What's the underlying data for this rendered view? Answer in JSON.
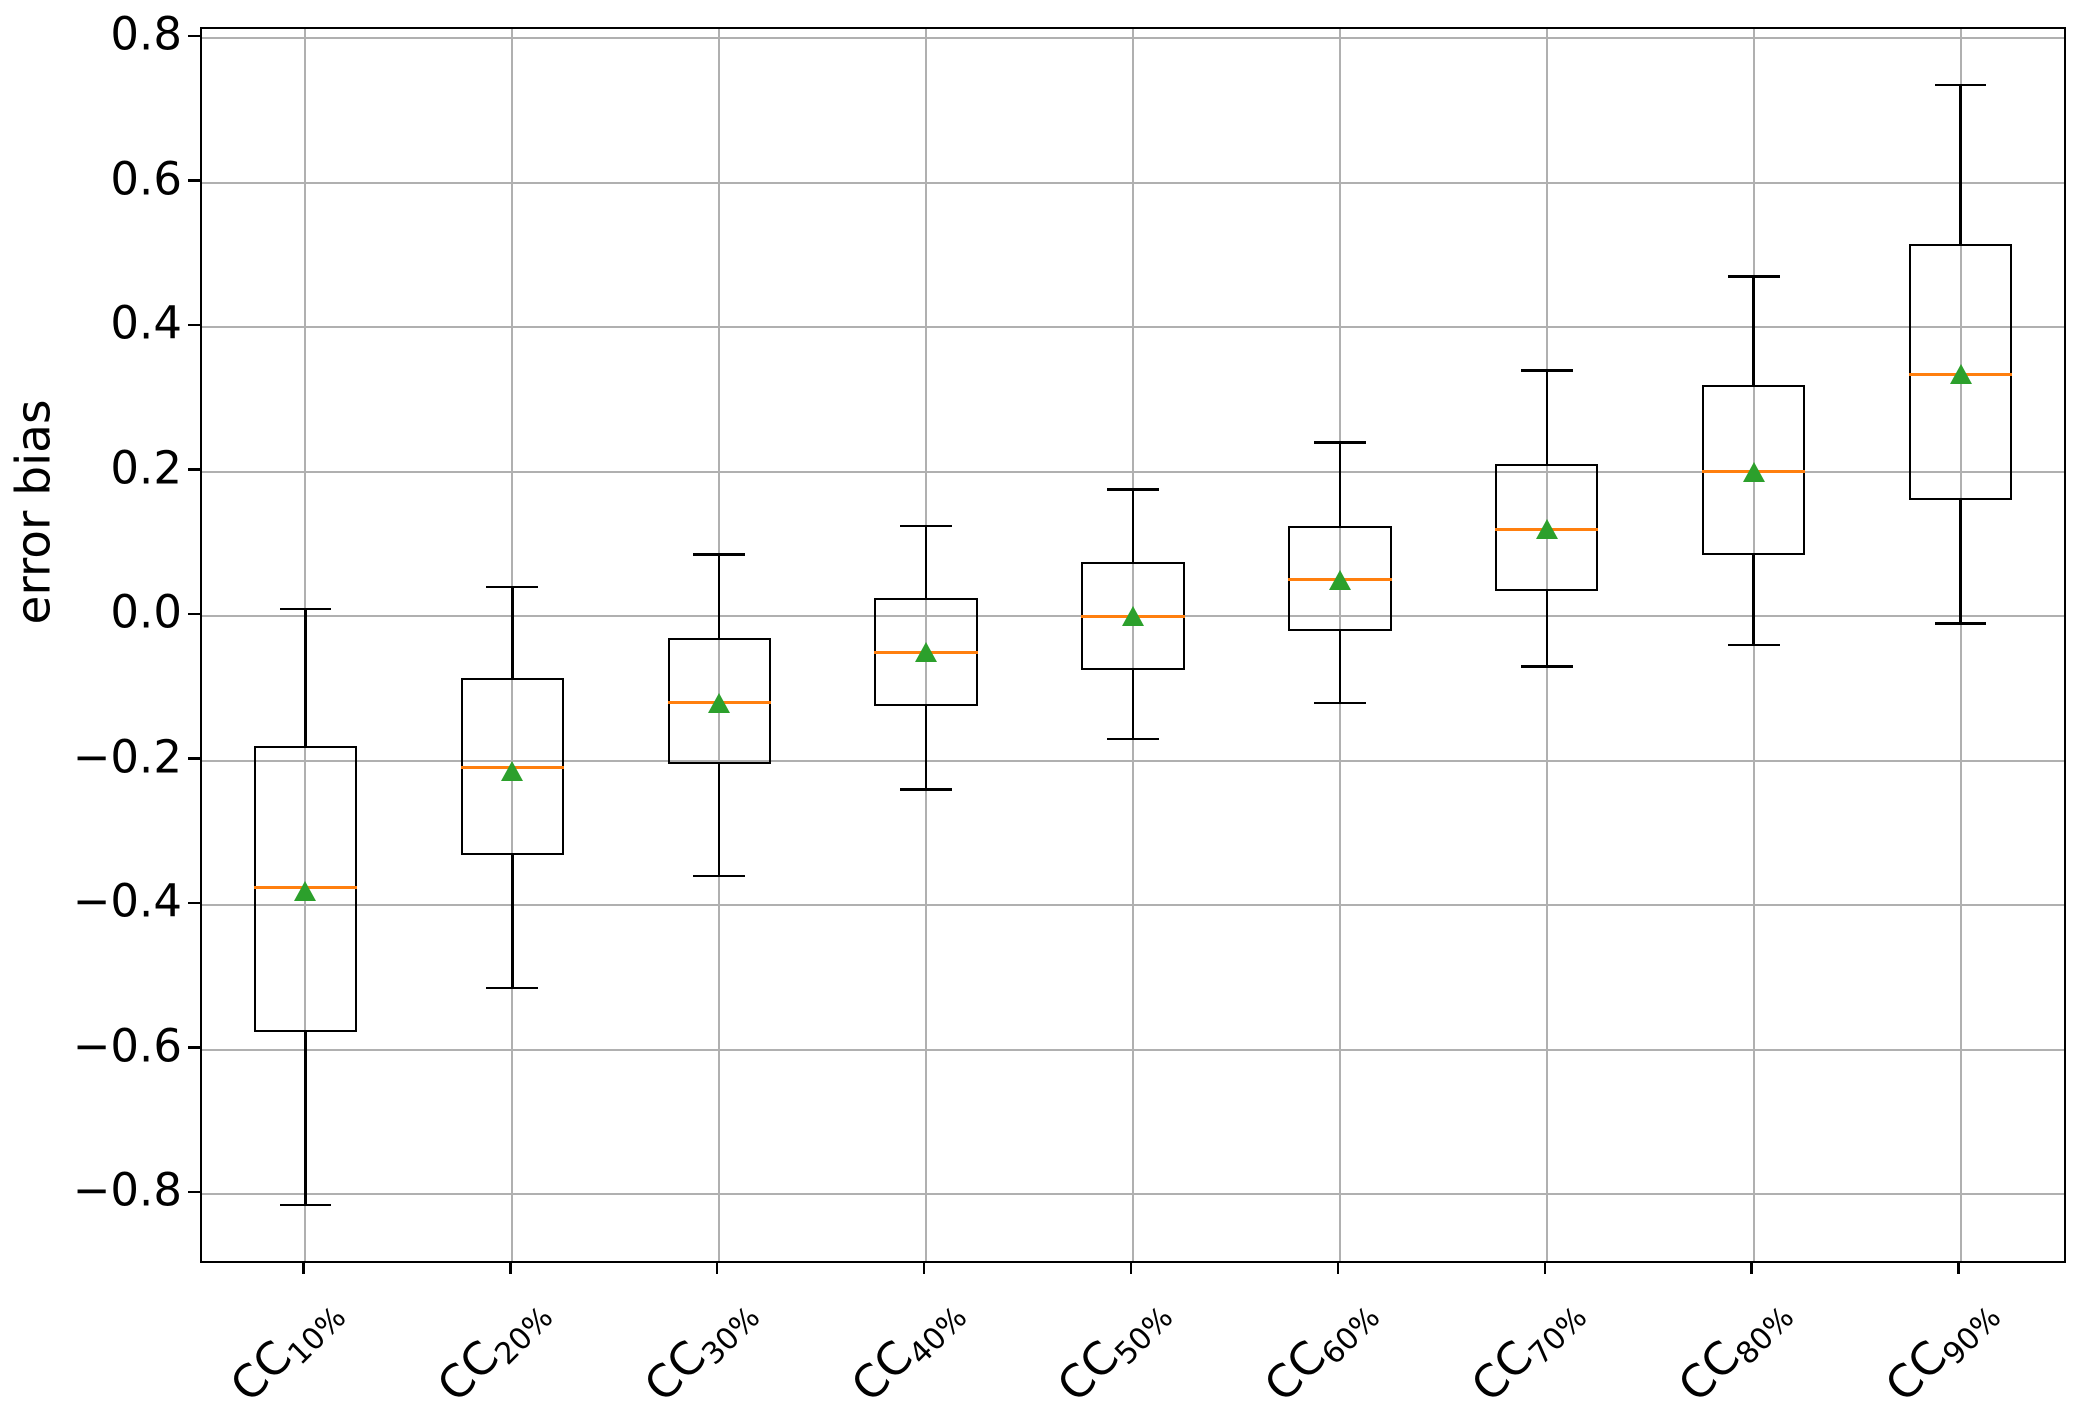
{
  "chart_data": {
    "type": "boxplot",
    "title": "",
    "xlabel": "",
    "ylabel": "error bias",
    "yticks": [
      0.8,
      0.6,
      0.4,
      0.2,
      0.0,
      -0.2,
      -0.4,
      -0.6,
      -0.8
    ],
    "ylim": [
      -0.8925,
      0.8125
    ],
    "grid": "both",
    "legend": null,
    "colors": {
      "box_edge": "#000000",
      "median": "#ff7f0e",
      "mean_marker": "#2ca02c",
      "grid": "#b0b0b0",
      "spine": "#000000",
      "background": "#ffffff"
    },
    "categories": [
      {
        "base": "CC",
        "sub": "10%"
      },
      {
        "base": "CC",
        "sub": "20%"
      },
      {
        "base": "CC",
        "sub": "30%"
      },
      {
        "base": "CC",
        "sub": "40%"
      },
      {
        "base": "CC",
        "sub": "50%"
      },
      {
        "base": "CC",
        "sub": "60%"
      },
      {
        "base": "CC",
        "sub": "70%"
      },
      {
        "base": "CC",
        "sub": "80%"
      },
      {
        "base": "CC",
        "sub": "90%"
      }
    ],
    "boxes": [
      {
        "label": "CC10%",
        "whislo": -0.815,
        "q1": -0.575,
        "med": -0.375,
        "mean": -0.38,
        "q3": -0.18,
        "whishi": 0.01
      },
      {
        "label": "CC20%",
        "whislo": -0.515,
        "q1": -0.33,
        "med": -0.21,
        "mean": -0.215,
        "q3": -0.085,
        "whishi": 0.04
      },
      {
        "label": "CC30%",
        "whislo": -0.36,
        "q1": -0.205,
        "med": -0.12,
        "mean": -0.12,
        "q3": -0.03,
        "whishi": 0.085
      },
      {
        "label": "CC40%",
        "whislo": -0.24,
        "q1": -0.125,
        "med": -0.05,
        "mean": -0.05,
        "q3": 0.025,
        "whishi": 0.125
      },
      {
        "label": "CC50%",
        "whislo": -0.17,
        "q1": -0.075,
        "med": 0.0,
        "mean": 0.0,
        "q3": 0.075,
        "whishi": 0.175
      },
      {
        "label": "CC60%",
        "whislo": -0.12,
        "q1": -0.02,
        "med": 0.05,
        "mean": 0.05,
        "q3": 0.125,
        "whishi": 0.24
      },
      {
        "label": "CC70%",
        "whislo": -0.07,
        "q1": 0.035,
        "med": 0.12,
        "mean": 0.12,
        "q3": 0.21,
        "whishi": 0.34
      },
      {
        "label": "CC80%",
        "whislo": -0.04,
        "q1": 0.085,
        "med": 0.2,
        "mean": 0.2,
        "q3": 0.32,
        "whishi": 0.47
      },
      {
        "label": "CC90%",
        "whislo": -0.01,
        "q1": 0.16,
        "med": 0.335,
        "mean": 0.335,
        "q3": 0.515,
        "whishi": 0.735
      }
    ]
  }
}
